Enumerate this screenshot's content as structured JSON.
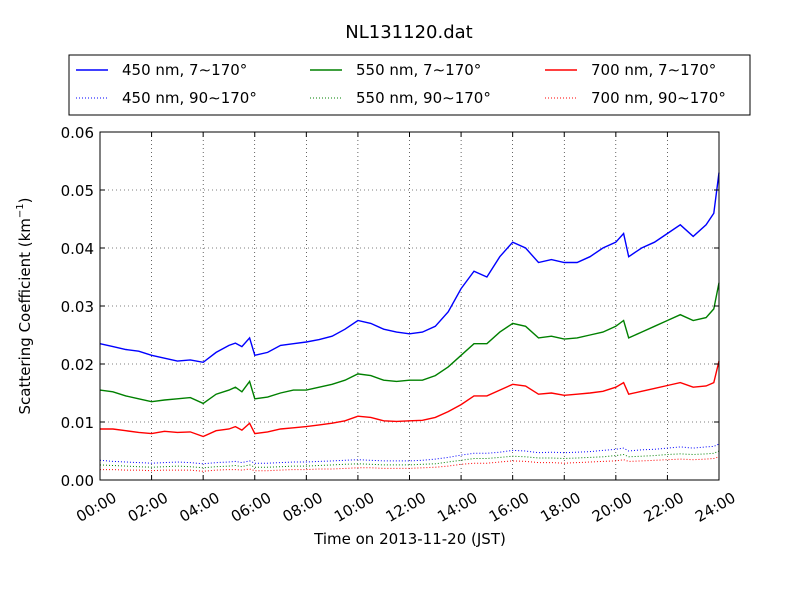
{
  "chart_data": {
    "type": "line",
    "title": "NL131120.dat",
    "xlabel": "Time on 2013-11-20 (JST)",
    "ylabel_main": "Scattering Coefficient (km",
    "ylabel_sup": "−1",
    "ylabel_close": ")",
    "xlim": [
      0,
      24
    ],
    "ylim": [
      0,
      0.06
    ],
    "grid": true,
    "legend_placement": "top, above plot",
    "x_tick_values": [
      0,
      2,
      4,
      6,
      8,
      10,
      12,
      14,
      16,
      18,
      20,
      22,
      24
    ],
    "x_tick_labels": [
      "00:00",
      "02:00",
      "04:00",
      "06:00",
      "08:00",
      "10:00",
      "12:00",
      "14:00",
      "16:00",
      "18:00",
      "20:00",
      "22:00",
      "24:00"
    ],
    "y_tick_values": [
      0,
      0.01,
      0.02,
      0.03,
      0.04,
      0.05,
      0.06
    ],
    "y_tick_labels": [
      "0.00",
      "0.01",
      "0.02",
      "0.03",
      "0.04",
      "0.05",
      "0.06"
    ],
    "x": [
      0,
      0.5,
      1,
      1.5,
      2,
      2.5,
      3,
      3.5,
      4,
      4.5,
      5,
      5.25,
      5.5,
      5.8,
      6,
      6.5,
      7,
      7.5,
      8,
      8.5,
      9,
      9.5,
      10,
      10.5,
      11,
      11.5,
      12,
      12.5,
      13,
      13.5,
      14,
      14.5,
      15,
      15.5,
      16,
      16.5,
      17,
      17.5,
      18,
      18.5,
      19,
      19.5,
      20,
      20.3,
      20.5,
      21,
      21.5,
      22,
      22.5,
      23,
      23.5,
      23.8,
      24
    ],
    "series": [
      {
        "name": "450 nm, 7∼170°",
        "color": "#0000ff",
        "style": "solid",
        "values": [
          0.0235,
          0.023,
          0.0225,
          0.0222,
          0.0215,
          0.021,
          0.0205,
          0.0207,
          0.0203,
          0.022,
          0.0232,
          0.0236,
          0.023,
          0.0245,
          0.0215,
          0.022,
          0.0232,
          0.0235,
          0.0238,
          0.0242,
          0.0248,
          0.026,
          0.0275,
          0.027,
          0.026,
          0.0255,
          0.0252,
          0.0255,
          0.0265,
          0.029,
          0.033,
          0.036,
          0.035,
          0.0385,
          0.041,
          0.04,
          0.0375,
          0.038,
          0.0375,
          0.0375,
          0.0385,
          0.04,
          0.041,
          0.0425,
          0.0385,
          0.04,
          0.041,
          0.0425,
          0.044,
          0.042,
          0.044,
          0.046,
          0.053
        ]
      },
      {
        "name": "550 nm, 7∼170°",
        "color": "#008000",
        "style": "solid",
        "values": [
          0.0155,
          0.0152,
          0.0145,
          0.014,
          0.0135,
          0.0138,
          0.014,
          0.0142,
          0.0132,
          0.0148,
          0.0155,
          0.016,
          0.0152,
          0.017,
          0.014,
          0.0143,
          0.015,
          0.0155,
          0.0155,
          0.016,
          0.0165,
          0.0172,
          0.0183,
          0.018,
          0.0172,
          0.017,
          0.0172,
          0.0172,
          0.018,
          0.0195,
          0.0215,
          0.0235,
          0.0235,
          0.0255,
          0.027,
          0.0265,
          0.0245,
          0.0248,
          0.0243,
          0.0245,
          0.025,
          0.0255,
          0.0265,
          0.0275,
          0.0245,
          0.0255,
          0.0265,
          0.0275,
          0.0285,
          0.0275,
          0.028,
          0.0295,
          0.034
        ]
      },
      {
        "name": "700 nm, 7∼170°",
        "color": "#ff0000",
        "style": "solid",
        "values": [
          0.0088,
          0.0088,
          0.0085,
          0.0082,
          0.008,
          0.0084,
          0.0082,
          0.0083,
          0.0075,
          0.0085,
          0.0088,
          0.0092,
          0.0086,
          0.0098,
          0.008,
          0.0083,
          0.0088,
          0.009,
          0.0092,
          0.0095,
          0.0098,
          0.0102,
          0.011,
          0.0108,
          0.0102,
          0.0101,
          0.0102,
          0.0103,
          0.0108,
          0.0118,
          0.013,
          0.0145,
          0.0145,
          0.0155,
          0.0165,
          0.0162,
          0.0148,
          0.015,
          0.0146,
          0.0148,
          0.015,
          0.0153,
          0.016,
          0.0168,
          0.0148,
          0.0153,
          0.0158,
          0.0163,
          0.0168,
          0.016,
          0.0162,
          0.0168,
          0.0205
        ]
      },
      {
        "name": "450 nm, 90∼170°",
        "color": "#0000ff",
        "style": "dotted",
        "values": [
          0.0034,
          0.0032,
          0.0031,
          0.003,
          0.0029,
          0.003,
          0.0031,
          0.003,
          0.0028,
          0.003,
          0.0031,
          0.0032,
          0.003,
          0.0033,
          0.0029,
          0.0029,
          0.003,
          0.0031,
          0.0031,
          0.0032,
          0.0033,
          0.0034,
          0.0035,
          0.0034,
          0.0033,
          0.0033,
          0.0033,
          0.0034,
          0.0036,
          0.0039,
          0.0043,
          0.0046,
          0.0046,
          0.0048,
          0.0051,
          0.005,
          0.0047,
          0.0048,
          0.0047,
          0.0048,
          0.0049,
          0.0051,
          0.0053,
          0.0055,
          0.005,
          0.0052,
          0.0053,
          0.0055,
          0.0057,
          0.0055,
          0.0057,
          0.0058,
          0.0062
        ]
      },
      {
        "name": "550 nm, 90∼170°",
        "color": "#008000",
        "style": "dotted",
        "values": [
          0.0026,
          0.0025,
          0.0024,
          0.0023,
          0.0022,
          0.0023,
          0.0024,
          0.0023,
          0.0021,
          0.0023,
          0.0024,
          0.0025,
          0.0023,
          0.0026,
          0.0022,
          0.0022,
          0.0023,
          0.0024,
          0.0024,
          0.0025,
          0.0026,
          0.0027,
          0.0028,
          0.0027,
          0.0026,
          0.0026,
          0.0026,
          0.0027,
          0.0028,
          0.0031,
          0.0034,
          0.0037,
          0.0037,
          0.0039,
          0.0041,
          0.004,
          0.0038,
          0.0038,
          0.0037,
          0.0038,
          0.0039,
          0.004,
          0.0042,
          0.0044,
          0.004,
          0.0041,
          0.0042,
          0.0044,
          0.0045,
          0.0044,
          0.0045,
          0.0046,
          0.005
        ]
      },
      {
        "name": "700 nm, 90∼170°",
        "color": "#ff0000",
        "style": "dotted",
        "values": [
          0.0018,
          0.0018,
          0.0017,
          0.0017,
          0.0016,
          0.0017,
          0.0017,
          0.0017,
          0.0015,
          0.0017,
          0.0018,
          0.0018,
          0.0017,
          0.0019,
          0.0016,
          0.0016,
          0.0017,
          0.0018,
          0.0018,
          0.0019,
          0.0019,
          0.002,
          0.0021,
          0.0021,
          0.002,
          0.002,
          0.002,
          0.0021,
          0.0022,
          0.0024,
          0.0027,
          0.0029,
          0.0029,
          0.0031,
          0.0033,
          0.0032,
          0.003,
          0.003,
          0.0029,
          0.003,
          0.0031,
          0.0032,
          0.0033,
          0.0035,
          0.0032,
          0.0033,
          0.0034,
          0.0035,
          0.0036,
          0.0035,
          0.0036,
          0.0037,
          0.004
        ]
      }
    ],
    "legend": {
      "rows": [
        [
          {
            "label": "450 nm, 7∼170°",
            "series": 0
          },
          {
            "label": "550 nm, 7∼170°",
            "series": 1
          },
          {
            "label": "700 nm, 7∼170°",
            "series": 2
          }
        ],
        [
          {
            "label": "450 nm, 90∼170°",
            "series": 3
          },
          {
            "label": "550 nm, 90∼170°",
            "series": 4
          },
          {
            "label": "700 nm, 90∼170°",
            "series": 5
          }
        ]
      ]
    }
  }
}
